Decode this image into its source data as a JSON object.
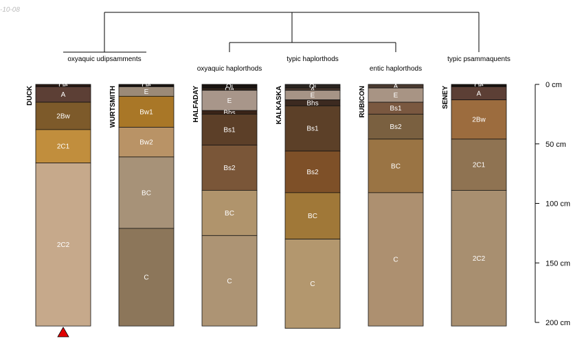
{
  "date_stamp": "-10-08",
  "groups": [
    {
      "label": "oxyaquic udipsamments"
    },
    {
      "label": "oxyaquic haplorthods"
    },
    {
      "label": "typic haplorthods"
    },
    {
      "label": "entic haplorthods"
    },
    {
      "label": "typic psammaquents"
    }
  ],
  "depth_axis": {
    "unit": "cm",
    "ticks": [
      {
        "value": 0,
        "label": "0 cm"
      },
      {
        "value": 50,
        "label": "50 cm"
      },
      {
        "value": 100,
        "label": "100 cm"
      },
      {
        "value": 150,
        "label": "150 cm"
      },
      {
        "value": 200,
        "label": "200 cm"
      }
    ]
  },
  "profiles": [
    {
      "name": "DUCK",
      "marker": "red-triangle",
      "horizons": [
        {
          "name": "Oe",
          "top": 0,
          "bottom": 2,
          "color": "#2a1a14"
        },
        {
          "name": "A",
          "top": 2,
          "bottom": 15,
          "color": "#5c3f35"
        },
        {
          "name": "2Bw",
          "top": 15,
          "bottom": 38,
          "color": "#7d5a2a"
        },
        {
          "name": "2C1",
          "top": 38,
          "bottom": 66,
          "color": "#c18e3d"
        },
        {
          "name": "2C2",
          "top": 66,
          "bottom": 203,
          "color": "#c6a98b"
        }
      ]
    },
    {
      "name": "WURTSMITH",
      "horizons": [
        {
          "name": "Oe",
          "top": 0,
          "bottom": 2,
          "color": "#1a1410"
        },
        {
          "name": "E",
          "top": 2,
          "bottom": 10,
          "color": "#9b8a78"
        },
        {
          "name": "Bw1",
          "top": 10,
          "bottom": 36,
          "color": "#a97727"
        },
        {
          "name": "Bw2",
          "top": 36,
          "bottom": 61,
          "color": "#b99366"
        },
        {
          "name": "BC",
          "top": 61,
          "bottom": 121,
          "color": "#a79278"
        },
        {
          "name": "C",
          "top": 121,
          "bottom": 203,
          "color": "#8c765a"
        }
      ]
    },
    {
      "name": "HALFADAY",
      "horizons": [
        {
          "name": "Oi",
          "top": 0,
          "bottom": 3,
          "color": "#1a1410"
        },
        {
          "name": "Oa",
          "top": 3,
          "bottom": 5,
          "color": "#35271e"
        },
        {
          "name": "E",
          "top": 5,
          "bottom": 22,
          "color": "#a8968a"
        },
        {
          "name": "Bhs",
          "top": 22,
          "bottom": 25,
          "color": "#3a2418"
        },
        {
          "name": "Bs1",
          "top": 25,
          "bottom": 51,
          "color": "#5c3f28"
        },
        {
          "name": "Bs2",
          "top": 51,
          "bottom": 89,
          "color": "#7a5638"
        },
        {
          "name": "BC",
          "top": 89,
          "bottom": 127,
          "color": "#b0946c"
        },
        {
          "name": "C",
          "top": 127,
          "bottom": 203,
          "color": "#ad9474"
        }
      ]
    },
    {
      "name": "KALKASKA",
      "horizons": [
        {
          "name": "Oi",
          "top": 0,
          "bottom": 3,
          "color": "#2a2420"
        },
        {
          "name": "A",
          "top": 3,
          "bottom": 5,
          "color": "#4c3a30"
        },
        {
          "name": "E",
          "top": 5,
          "bottom": 13,
          "color": "#a69486"
        },
        {
          "name": "Bhs",
          "top": 13,
          "bottom": 18,
          "color": "#3c2a20"
        },
        {
          "name": "Bs1",
          "top": 18,
          "bottom": 56,
          "color": "#5c4028"
        },
        {
          "name": "Bs2",
          "top": 56,
          "bottom": 91,
          "color": "#7e5028"
        },
        {
          "name": "BC",
          "top": 91,
          "bottom": 130,
          "color": "#a07838"
        },
        {
          "name": "C",
          "top": 130,
          "bottom": 205,
          "color": "#b3976e"
        }
      ]
    },
    {
      "name": "RUBICON",
      "horizons": [
        {
          "name": "A",
          "top": 0,
          "bottom": 3,
          "color": "#4a3a30"
        },
        {
          "name": "E",
          "top": 3,
          "bottom": 15,
          "color": "#a89484"
        },
        {
          "name": "Bs1",
          "top": 15,
          "bottom": 25,
          "color": "#7a5840"
        },
        {
          "name": "Bs2",
          "top": 25,
          "bottom": 46,
          "color": "#7a6040"
        },
        {
          "name": "BC",
          "top": 46,
          "bottom": 91,
          "color": "#9a7444"
        },
        {
          "name": "C",
          "top": 91,
          "bottom": 203,
          "color": "#ad9070"
        }
      ]
    },
    {
      "name": "SENEY",
      "horizons": [
        {
          "name": "Oe",
          "top": 0,
          "bottom": 2,
          "color": "#1a1410"
        },
        {
          "name": "A",
          "top": 2,
          "bottom": 13,
          "color": "#5c3f35"
        },
        {
          "name": "2Bw",
          "top": 13,
          "bottom": 46,
          "color": "#9c6c3e"
        },
        {
          "name": "2C1",
          "top": 46,
          "bottom": 89,
          "color": "#8f7352"
        },
        {
          "name": "2C2",
          "top": 89,
          "bottom": 203,
          "color": "#a88f70"
        }
      ]
    }
  ]
}
